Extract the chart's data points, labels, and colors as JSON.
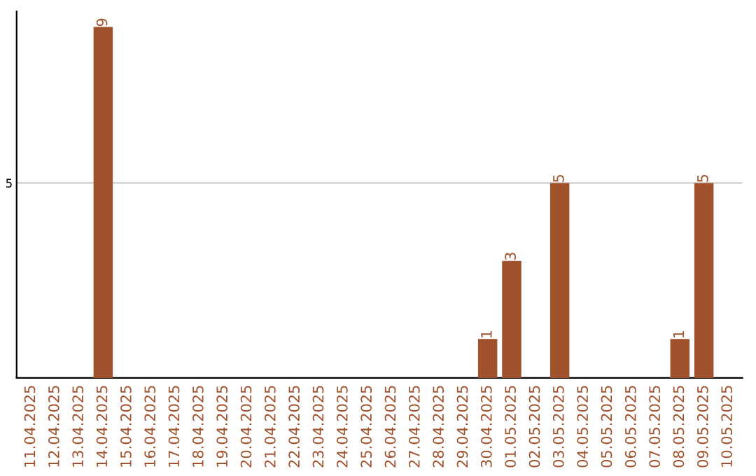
{
  "chart_data": {
    "type": "bar",
    "categories": [
      "11.04.2025",
      "12.04.2025",
      "13.04.2025",
      "14.04.2025",
      "15.04.2025",
      "16.04.2025",
      "17.04.2025",
      "18.04.2025",
      "19.04.2025",
      "20.04.2025",
      "21.04.2025",
      "22.04.2025",
      "23.04.2025",
      "24.04.2025",
      "25.04.2025",
      "26.04.2025",
      "27.04.2025",
      "28.04.2025",
      "29.04.2025",
      "30.04.2025",
      "01.05.2025",
      "02.05.2025",
      "03.05.2025",
      "04.05.2025",
      "05.05.2025",
      "06.05.2025",
      "07.05.2025",
      "08.05.2025",
      "09.05.2025",
      "10.05.2025"
    ],
    "values": [
      0,
      0,
      0,
      9,
      0,
      0,
      0,
      0,
      0,
      0,
      0,
      0,
      0,
      0,
      0,
      0,
      0,
      0,
      0,
      1,
      3,
      0,
      5,
      0,
      0,
      0,
      0,
      1,
      5,
      0
    ],
    "value_labels": [
      null,
      null,
      null,
      "9",
      null,
      null,
      null,
      null,
      null,
      null,
      null,
      null,
      null,
      null,
      null,
      null,
      null,
      null,
      null,
      "1",
      "3",
      null,
      "5",
      null,
      null,
      null,
      null,
      "1",
      "5",
      null
    ],
    "color": "#a0522d",
    "ylim": [
      0,
      9.4
    ],
    "yticks": [
      5
    ],
    "grid": "y",
    "legend": false
  }
}
